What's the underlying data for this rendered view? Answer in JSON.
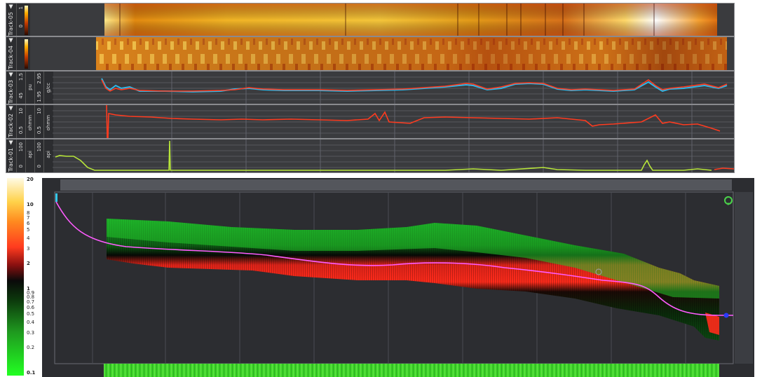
{
  "tracks": [
    {
      "id": "track-05",
      "label": "Track-05 ▲",
      "scale_left": "0",
      "scale_right": "1",
      "type": "heatmap"
    },
    {
      "id": "track-04",
      "label": "Track-04 ▲",
      "scale_left": "",
      "scale_right": "",
      "type": "heatmap"
    },
    {
      "id": "track-03",
      "label": "Track-03 ▲",
      "scale_top": "1.5",
      "scale_bottom": "45",
      "unit_1": "pu",
      "scale2_top": "2.95",
      "scale2_bottom": "1.95",
      "unit_2": "g/cc",
      "type": "curves"
    },
    {
      "id": "track-02",
      "label": "Track-02 ▲",
      "scale_top": "10",
      "scale_bottom": "0.5",
      "unit_1": "ohmm",
      "scale2_top": "10",
      "scale2_bottom": "0.5",
      "unit_2": "ohmm",
      "type": "curves"
    },
    {
      "id": "track-01",
      "label": "Track-01 ▲",
      "scale_top": "100",
      "scale_bottom": "0",
      "unit_1": "api",
      "scale2_top": "100",
      "scale2_bottom": "0",
      "unit_2": "api",
      "type": "curves"
    }
  ],
  "color_legend": {
    "ticks": [
      "20",
      "10",
      "8",
      "7",
      "6",
      "5",
      "4",
      "3",
      "2",
      "1",
      "0.9",
      "0.8",
      "0.7",
      "0.6",
      "0.5",
      "0.4",
      "0.3",
      "0.2",
      "0.1"
    ],
    "ticks_values": [
      20,
      10,
      8,
      7,
      6,
      5,
      4,
      3,
      2,
      1,
      0.9,
      0.8,
      0.7,
      0.6,
      0.5,
      0.4,
      0.3,
      0.2,
      0.1
    ],
    "colors": {
      "high": "#fffbe6",
      "mid_high": "#ff3b1f",
      "mid": "#111111",
      "mid_low": "#1f9a1f",
      "low": "#22ff22"
    }
  },
  "colors": {
    "track_bg": "#3a3b3e",
    "density_curve": "#2fb7e8",
    "neutron_curve": "#ff3b1f",
    "resistivity_curve": "#ff3b1f",
    "gamma_curve": "#b8e63a",
    "gamma_curve_2": "#ff3b1f",
    "well_path": "#ff5cff",
    "section_bg": "#2c2d31",
    "refresh_icon": "#4ad04a"
  },
  "icons": {
    "refresh": "refresh-icon",
    "marker": "marker-circle-icon",
    "endpoint": "endpoint-icon"
  }
}
